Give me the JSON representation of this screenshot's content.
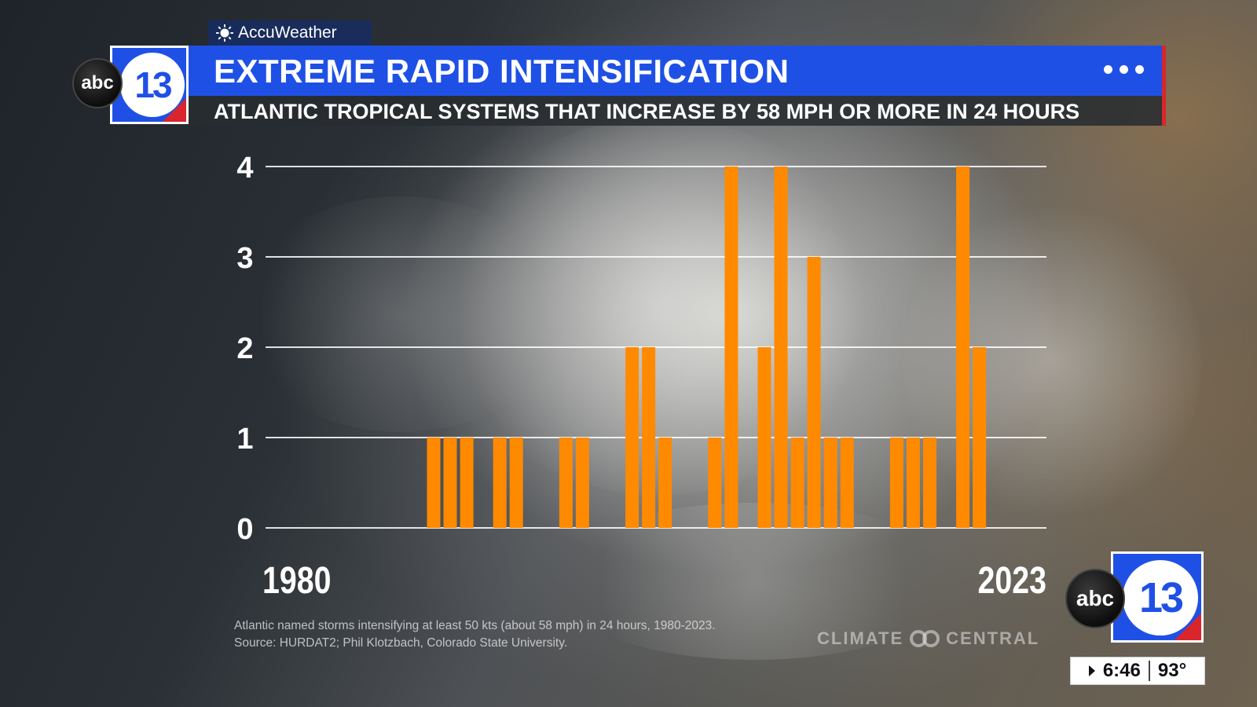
{
  "brand": {
    "accuweather_label": "AccuWeather",
    "abc_text": "abc",
    "station_number": "13",
    "climate_central_left": "CLIMATE",
    "climate_central_right": "CENTRAL"
  },
  "header": {
    "title": "EXTREME RAPID INTENSIFICATION",
    "subtitle": "ATLANTIC TROPICAL SYSTEMS THAT INCREASE BY 58 MPH OR MORE IN 24 HOURS"
  },
  "footer": {
    "note_line1": "Atlantic named storms intensifying at least 50 kts (about 58 mph) in 24 hours, 1980-2023.",
    "note_line2": "Source: HURDAT2; Phil Klotzbach, Colorado State University."
  },
  "status": {
    "time": "6:46",
    "temperature": "93°"
  },
  "colors": {
    "bar": "#ff8a00",
    "banner_blue": "#1f50e6",
    "banner_red": "#d9252b",
    "gridline": "#ffffff"
  },
  "chart_data": {
    "type": "bar",
    "title": "EXTREME RAPID INTENSIFICATION",
    "subtitle": "ATLANTIC TROPICAL SYSTEMS THAT INCREASE BY 58 MPH OR MORE IN 24 HOURS",
    "xlabel": "",
    "ylabel": "",
    "x_start_label": "1980",
    "x_end_label": "2023",
    "ylim": [
      0,
      4
    ],
    "yticks": [
      "0",
      "1",
      "2",
      "3",
      "4"
    ],
    "grid": true,
    "categories": [
      1980,
      1981,
      1982,
      1983,
      1984,
      1985,
      1986,
      1987,
      1988,
      1989,
      1990,
      1991,
      1992,
      1993,
      1994,
      1995,
      1996,
      1997,
      1998,
      1999,
      2000,
      2001,
      2002,
      2003,
      2004,
      2005,
      2006,
      2007,
      2008,
      2009,
      2010,
      2011,
      2012,
      2013,
      2014,
      2015,
      2016,
      2017,
      2018,
      2019,
      2020,
      2021,
      2022,
      2023
    ],
    "values": [
      0,
      0,
      0,
      0,
      0,
      0,
      0,
      0,
      0,
      1,
      1,
      1,
      0,
      1,
      1,
      0,
      0,
      1,
      1,
      0,
      0,
      2,
      2,
      1,
      0,
      0,
      1,
      4,
      0,
      2,
      4,
      1,
      3,
      1,
      1,
      0,
      0,
      1,
      1,
      1,
      0,
      4,
      2,
      0
    ]
  }
}
